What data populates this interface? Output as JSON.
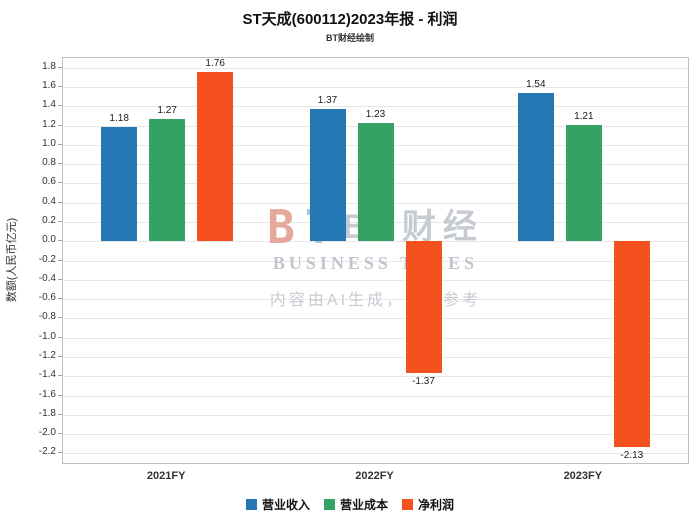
{
  "title": "ST天成(600112)2023年报 - 利润",
  "subtitle": "BT财经绘制",
  "watermark": {
    "logo_b": "B",
    "logo_t": "T",
    "logo_text": "BT财经",
    "logo_sub": "BUSINESS TIMES",
    "disclaimer": "内容由AI生成，仅供参考"
  },
  "chart_data": {
    "type": "bar",
    "categories": [
      "2021FY",
      "2022FY",
      "2023FY"
    ],
    "series": [
      {
        "name": "营业收入",
        "color": "#2478b4",
        "values": [
          1.18,
          1.37,
          1.54
        ]
      },
      {
        "name": "营业成本",
        "color": "#35a164",
        "values": [
          1.27,
          1.23,
          1.21
        ]
      },
      {
        "name": "净利润",
        "color": "#f4511e",
        "values": [
          1.76,
          -1.37,
          -2.13
        ]
      }
    ],
    "xlabel": "",
    "ylabel": "数额(人民币亿元)",
    "ylim": [
      -2.2,
      1.8
    ],
    "ytick_step": 0.2,
    "grid": true,
    "legend_position": "bottom"
  }
}
